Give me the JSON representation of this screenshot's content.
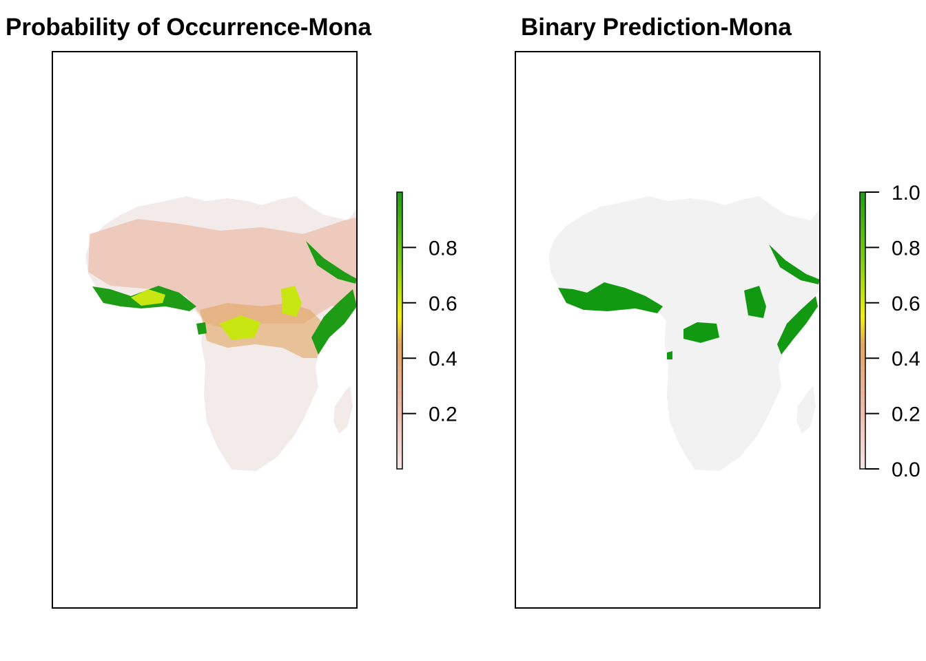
{
  "panels": [
    {
      "title": "Probability of Occurrence-Mona",
      "legend": {
        "ticks": [
          "0.2",
          "0.4",
          "0.6",
          "0.8"
        ],
        "tick_values": [
          0.2,
          0.4,
          0.6,
          0.8
        ],
        "range": [
          0.0,
          1.0
        ]
      }
    },
    {
      "title": "Binary Prediction-Mona",
      "legend": {
        "ticks": [
          "0.0",
          "0.2",
          "0.4",
          "0.6",
          "0.8",
          "1.0"
        ],
        "tick_values": [
          0.0,
          0.2,
          0.4,
          0.6,
          0.8,
          1.0
        ],
        "range": [
          0.0,
          1.0
        ]
      }
    }
  ],
  "colors": {
    "scale_low": "#f5e6e6",
    "scale_02": "#ebb5a3",
    "scale_04": "#e2a560",
    "scale_05": "#f2f20c",
    "scale_07": "#82cc14",
    "scale_high": "#1f9c16",
    "land_background": "#f2f2f2",
    "prob_land": "#f3eaea",
    "prob_low_tint": "#ecc4b4",
    "prob_mid": "#e2a560",
    "prob_yellow": "#c8e612",
    "binary_presence": "#119a11"
  }
}
